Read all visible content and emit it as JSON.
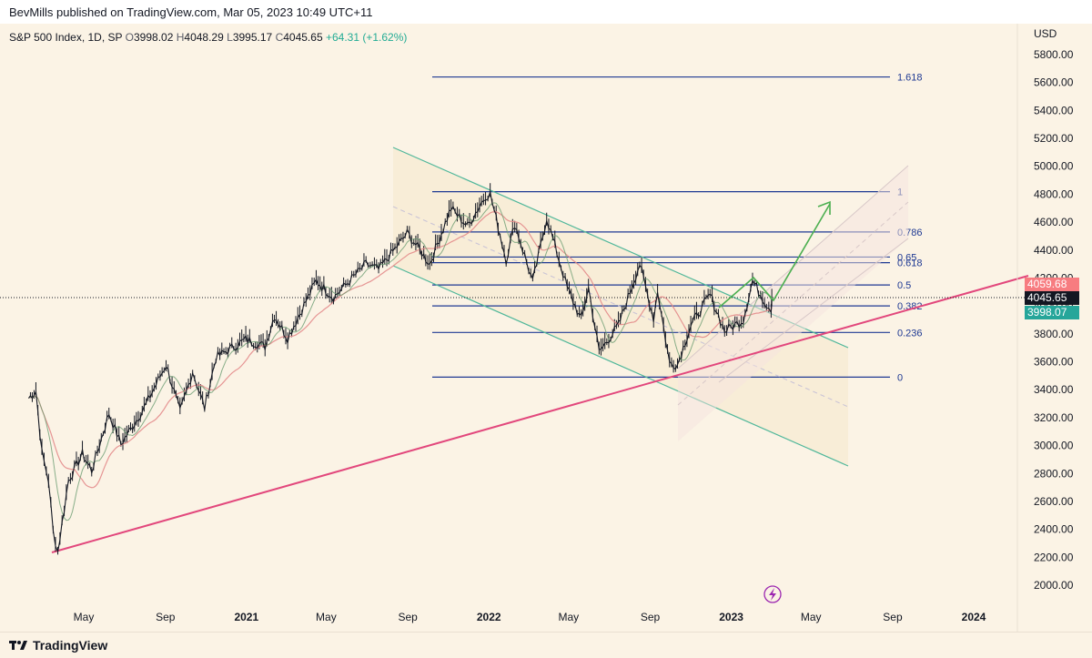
{
  "header": {
    "published": "BevMills published on TradingView.com, Mar 05, 2023 10:49 UTC+11"
  },
  "legend": {
    "symbol": "S&P 500 Index, 1D, SP",
    "open_label": "O",
    "open": "3998.02",
    "high_label": "H",
    "high": "4048.29",
    "low_label": "L",
    "low": "3995.17",
    "close_label": "C",
    "close": "4045.65",
    "change": "+64.31 (+1.62%)"
  },
  "price_tags": {
    "red": "4059.68",
    "black": "4045.65",
    "green": "3998.07"
  },
  "footer": {
    "brand": "TradingView"
  },
  "colors": {
    "background": "#fbf3e5",
    "fib_line": "#1f3a93",
    "channel": "#4fb79a",
    "trend": "#e2477c",
    "arrow": "#4caf50",
    "up_tag": "#f77c80",
    "down_tag": "#26a69a"
  },
  "chart_data": {
    "type": "line",
    "title": "S&P 500 Index, 1D, SP",
    "currency": "USD",
    "ylim": [
      1900,
      6000
    ],
    "y_ticks": [
      2000,
      2200,
      2400,
      2600,
      2800,
      3000,
      3200,
      3400,
      3600,
      3800,
      4000,
      4200,
      4400,
      4600,
      4800,
      5000,
      5200,
      5400,
      5600,
      5800
    ],
    "x_ticks": [
      {
        "label": "May",
        "date": "2020-05-01",
        "bold": false
      },
      {
        "label": "Sep",
        "date": "2020-09-01",
        "bold": false
      },
      {
        "label": "2021",
        "date": "2021-01-01",
        "bold": true
      },
      {
        "label": "May",
        "date": "2021-05-01",
        "bold": false
      },
      {
        "label": "Sep",
        "date": "2021-09-01",
        "bold": false
      },
      {
        "label": "2022",
        "date": "2022-01-01",
        "bold": true
      },
      {
        "label": "May",
        "date": "2022-05-01",
        "bold": false
      },
      {
        "label": "Sep",
        "date": "2022-09-01",
        "bold": false
      },
      {
        "label": "2023",
        "date": "2023-01-01",
        "bold": true
      },
      {
        "label": "May",
        "date": "2023-05-01",
        "bold": false
      },
      {
        "label": "Sep",
        "date": "2023-09-01",
        "bold": false
      },
      {
        "label": "2024",
        "date": "2024-01-01",
        "bold": true
      }
    ],
    "xlim": [
      "2020-02-08",
      "2024-02-20"
    ],
    "series": [
      {
        "name": "S&P 500",
        "points": [
          [
            "2020-02-08",
            3340
          ],
          [
            "2020-02-19",
            3390
          ],
          [
            "2020-02-28",
            2950
          ],
          [
            "2020-03-09",
            2750
          ],
          [
            "2020-03-16",
            2380
          ],
          [
            "2020-03-23",
            2240
          ],
          [
            "2020-04-08",
            2750
          ],
          [
            "2020-04-29",
            2940
          ],
          [
            "2020-05-13",
            2820
          ],
          [
            "2020-06-08",
            3230
          ],
          [
            "2020-06-26",
            3010
          ],
          [
            "2020-07-31",
            3270
          ],
          [
            "2020-09-02",
            3580
          ],
          [
            "2020-09-23",
            3240
          ],
          [
            "2020-10-12",
            3530
          ],
          [
            "2020-10-30",
            3270
          ],
          [
            "2020-11-16",
            3630
          ],
          [
            "2020-12-31",
            3760
          ],
          [
            "2021-01-29",
            3710
          ],
          [
            "2021-02-12",
            3930
          ],
          [
            "2021-03-04",
            3770
          ],
          [
            "2021-04-16",
            4180
          ],
          [
            "2021-05-12",
            4060
          ],
          [
            "2021-06-30",
            4300
          ],
          [
            "2021-07-19",
            4260
          ],
          [
            "2021-08-31",
            4520
          ],
          [
            "2021-09-10",
            4460
          ],
          [
            "2021-10-04",
            4300
          ],
          [
            "2021-11-05",
            4700
          ],
          [
            "2021-11-30",
            4570
          ],
          [
            "2021-12-27",
            4790
          ],
          [
            "2022-01-03",
            4800
          ],
          [
            "2022-01-27",
            4330
          ],
          [
            "2022-02-09",
            4590
          ],
          [
            "2022-03-08",
            4170
          ],
          [
            "2022-03-29",
            4630
          ],
          [
            "2022-04-29",
            4130
          ],
          [
            "2022-05-20",
            3900
          ],
          [
            "2022-05-31",
            4130
          ],
          [
            "2022-06-16",
            3670
          ],
          [
            "2022-07-15",
            3860
          ],
          [
            "2022-08-16",
            4300
          ],
          [
            "2022-09-06",
            3910
          ],
          [
            "2022-09-12",
            4110
          ],
          [
            "2022-09-30",
            3590
          ],
          [
            "2022-10-12",
            3580
          ],
          [
            "2022-11-01",
            3860
          ],
          [
            "2022-11-30",
            4080
          ],
          [
            "2022-12-22",
            3820
          ],
          [
            "2023-01-19",
            3900
          ],
          [
            "2023-02-02",
            4180
          ],
          [
            "2023-02-23",
            4010
          ],
          [
            "2023-03-02",
            3980
          ],
          [
            "2023-03-03",
            4045
          ]
        ]
      }
    ],
    "fib_levels": [
      {
        "label": "0",
        "value": 3490
      },
      {
        "label": "0.236",
        "value": 3810
      },
      {
        "label": "0.382",
        "value": 4000
      },
      {
        "label": "0.5",
        "value": 4150
      },
      {
        "label": "0.618",
        "value": 4310
      },
      {
        "label": "0.65",
        "value": 4350
      },
      {
        "label": "0.786",
        "value": 4530
      },
      {
        "label": "1",
        "value": 4818
      },
      {
        "label": "1.618",
        "value": 5640
      }
    ]
  }
}
